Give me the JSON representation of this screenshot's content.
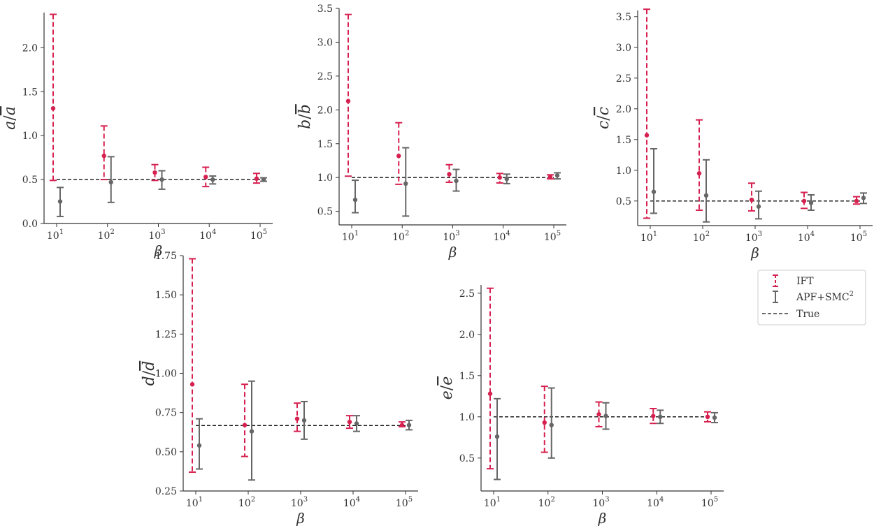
{
  "chart_data": [
    {
      "type": "errorbar",
      "ylabel_main": "a",
      "ylabel_denom": "a",
      "xlabel": "β",
      "xticks": [
        "10",
        "10",
        "10",
        "10",
        "10"
      ],
      "xtick_exponents": [
        "1",
        "2",
        "3",
        "4",
        "5"
      ],
      "x": [
        10,
        100,
        1000,
        10000,
        100000
      ],
      "ylim": [
        0,
        2.4
      ],
      "yticks": [
        "0.0",
        "0.5",
        "1.0",
        "1.5",
        "2.0"
      ],
      "ytick_values": [
        0,
        0.5,
        1.0,
        1.5,
        2.0
      ],
      "true_value": 0.5,
      "series": [
        {
          "name": "IFT",
          "mean": [
            1.31,
            0.77,
            0.58,
            0.53,
            0.51
          ],
          "lower": [
            0.49,
            0.5,
            0.49,
            0.42,
            0.46
          ],
          "upper": [
            2.38,
            1.11,
            0.67,
            0.64,
            0.57
          ]
        },
        {
          "name": "APF+SMC",
          "mean": [
            0.25,
            0.47,
            0.5,
            0.5,
            0.5
          ],
          "lower": [
            0.08,
            0.24,
            0.39,
            0.45,
            0.48
          ],
          "upper": [
            0.41,
            0.76,
            0.6,
            0.54,
            0.52
          ]
        }
      ]
    },
    {
      "type": "errorbar",
      "ylabel_main": "b",
      "ylabel_denom": "b",
      "xlabel": "β",
      "xticks": [
        "10",
        "10",
        "10",
        "10",
        "10"
      ],
      "xtick_exponents": [
        "1",
        "2",
        "3",
        "4",
        "5"
      ],
      "x": [
        10,
        100,
        1000,
        10000,
        100000
      ],
      "ylim": [
        0.3,
        3.5
      ],
      "yticks": [
        "0.5",
        "1.0",
        "1.5",
        "2.0",
        "2.5",
        "3.0",
        "3.5"
      ],
      "ytick_values": [
        0.5,
        1.0,
        1.5,
        2.0,
        2.5,
        3.0,
        3.5
      ],
      "true_value": 1.0,
      "series": [
        {
          "name": "IFT",
          "mean": [
            2.13,
            1.32,
            1.05,
            1.0,
            1.01
          ],
          "lower": [
            1.02,
            0.9,
            0.93,
            0.92,
            0.98
          ],
          "upper": [
            3.41,
            1.81,
            1.19,
            1.06,
            1.04
          ]
        },
        {
          "name": "APF+SMC",
          "mean": [
            0.67,
            0.91,
            0.95,
            0.98,
            1.03
          ],
          "lower": [
            0.48,
            0.43,
            0.8,
            0.91,
            0.98
          ],
          "upper": [
            0.96,
            1.44,
            1.12,
            1.05,
            1.07
          ]
        }
      ]
    },
    {
      "type": "errorbar",
      "ylabel_main": "c",
      "ylabel_denom": "c",
      "xlabel": "β",
      "xticks": [
        "10",
        "10",
        "10",
        "10",
        "10"
      ],
      "xtick_exponents": [
        "1",
        "2",
        "3",
        "4",
        "5"
      ],
      "x": [
        10,
        100,
        1000,
        10000,
        100000
      ],
      "ylim": [
        0.1,
        3.6
      ],
      "yticks": [
        "0.5",
        "1.0",
        "1.5",
        "2.0",
        "2.5",
        "3.0",
        "3.5"
      ],
      "ytick_values": [
        0.5,
        1.0,
        1.5,
        2.0,
        2.5,
        3.0,
        3.5
      ],
      "true_value": 0.5,
      "series": [
        {
          "name": "IFT",
          "mean": [
            1.57,
            0.95,
            0.52,
            0.5,
            0.5
          ],
          "lower": [
            0.22,
            0.35,
            0.34,
            0.38,
            0.45
          ],
          "upper": [
            3.62,
            1.82,
            0.79,
            0.64,
            0.57
          ]
        },
        {
          "name": "APF+SMC",
          "mean": [
            0.65,
            0.59,
            0.41,
            0.47,
            0.55
          ],
          "lower": [
            0.3,
            0.16,
            0.21,
            0.35,
            0.46
          ],
          "upper": [
            1.35,
            1.17,
            0.66,
            0.6,
            0.63
          ]
        }
      ]
    },
    {
      "type": "errorbar",
      "ylabel_main": "d",
      "ylabel_denom": "d",
      "xlabel": "β",
      "xticks": [
        "10",
        "10",
        "10",
        "10",
        "10"
      ],
      "xtick_exponents": [
        "1",
        "2",
        "3",
        "4",
        "5"
      ],
      "x": [
        10,
        100,
        1000,
        10000,
        100000
      ],
      "ylim": [
        0.25,
        1.75
      ],
      "yticks": [
        "0.25",
        "0.50",
        "0.75",
        "1.00",
        "1.25",
        "1.50",
        "1.75"
      ],
      "ytick_values": [
        0.25,
        0.5,
        0.75,
        1.0,
        1.25,
        1.5,
        1.75
      ],
      "true_value": 0.667,
      "series": [
        {
          "name": "IFT",
          "mean": [
            0.93,
            0.67,
            0.71,
            0.69,
            0.67
          ],
          "lower": [
            0.37,
            0.47,
            0.63,
            0.65,
            0.66
          ],
          "upper": [
            1.73,
            0.93,
            0.81,
            0.73,
            0.69
          ]
        },
        {
          "name": "APF+SMC",
          "mean": [
            0.54,
            0.63,
            0.7,
            0.68,
            0.67
          ],
          "lower": [
            0.39,
            0.32,
            0.58,
            0.63,
            0.64
          ],
          "upper": [
            0.71,
            0.95,
            0.82,
            0.73,
            0.7
          ]
        }
      ]
    },
    {
      "type": "errorbar",
      "ylabel_main": "e",
      "ylabel_denom": "e",
      "xlabel": "β",
      "xticks": [
        "10",
        "10",
        "10",
        "10",
        "10"
      ],
      "xtick_exponents": [
        "1",
        "2",
        "3",
        "4",
        "5"
      ],
      "x": [
        10,
        100,
        1000,
        10000,
        100000
      ],
      "ylim": [
        0.1,
        2.6
      ],
      "yticks": [
        "0.5",
        "1.0",
        "1.5",
        "2.0",
        "2.5"
      ],
      "ytick_values": [
        0.5,
        1.0,
        1.5,
        2.0,
        2.5
      ],
      "true_value": 1.0,
      "series": [
        {
          "name": "IFT",
          "mean": [
            1.28,
            0.93,
            1.03,
            1.01,
            1.0
          ],
          "lower": [
            0.37,
            0.57,
            0.88,
            0.92,
            0.94
          ],
          "upper": [
            2.56,
            1.37,
            1.18,
            1.1,
            1.06
          ]
        },
        {
          "name": "APF+SMC",
          "mean": [
            0.76,
            0.9,
            1.01,
            1.0,
            0.99
          ],
          "lower": [
            0.24,
            0.5,
            0.85,
            0.92,
            0.93
          ],
          "upper": [
            1.22,
            1.35,
            1.17,
            1.08,
            1.05
          ]
        }
      ]
    }
  ],
  "legend": {
    "placement": "right",
    "items": [
      {
        "label": "IFT",
        "superscript": ""
      },
      {
        "label": "APF+SMC",
        "superscript": "2"
      },
      {
        "label": "True",
        "superscript": ""
      }
    ]
  },
  "colors": {
    "ift": "#d6204f",
    "apf": "#666666",
    "true": "#111111",
    "axis": "#333333"
  }
}
